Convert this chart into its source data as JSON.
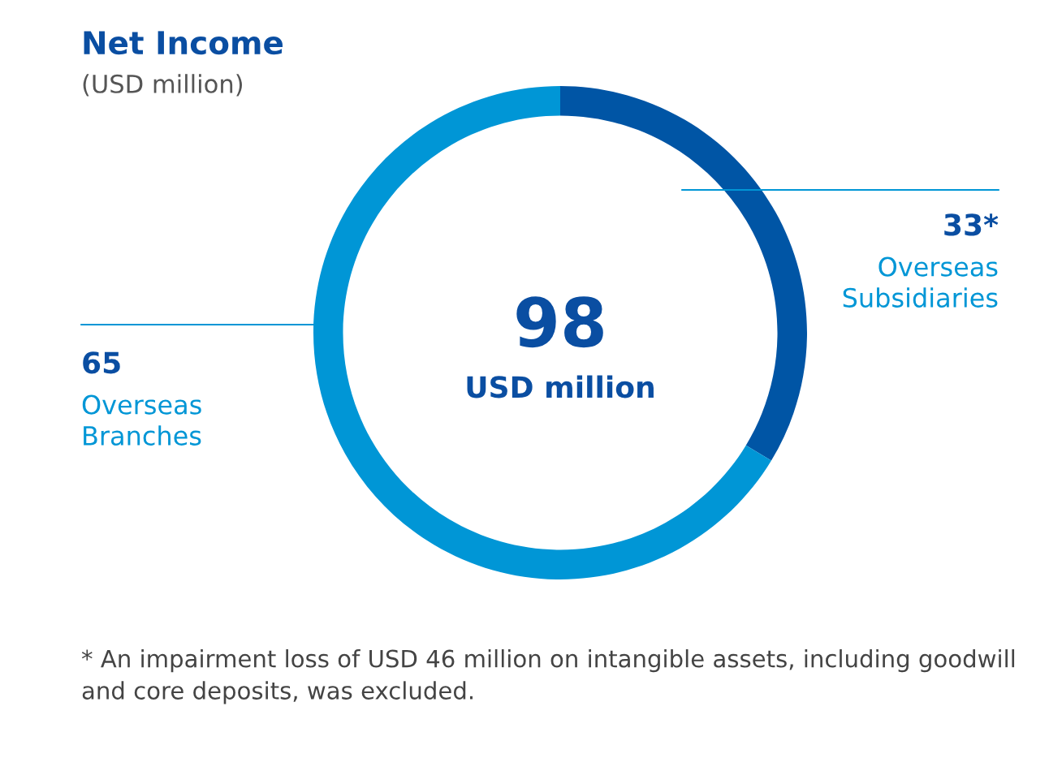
{
  "chart_data": {
    "type": "donut",
    "title": "Net Income",
    "subtitle": "(USD million)",
    "categories": [
      "Overseas Subsidiaries",
      "Overseas Branches"
    ],
    "values": [
      33,
      65
    ],
    "value_labels": [
      "33*",
      "65"
    ],
    "colors": [
      "#0055a5",
      "#0096d6"
    ],
    "annotations": [
      "98",
      "USD million",
      "* An impairment loss of USD 46 million on intangible assets, including goodwill and core deposits, was excluded."
    ],
    "legend": false
  }
}
